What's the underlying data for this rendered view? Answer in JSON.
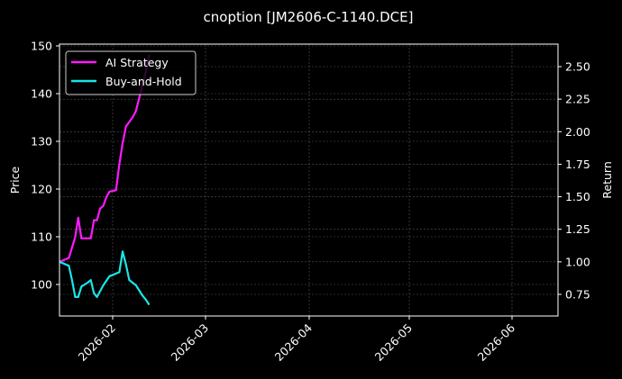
{
  "chart_data": {
    "type": "line",
    "title": "cnoption [JM2606-C-1140.DCE]",
    "xlabel": "",
    "ylabel": "Price",
    "ylabel_right": "Return",
    "ylim": [
      93.5,
      150.2
    ],
    "ylim_right": [
      0.58,
      2.65
    ],
    "x_ticks": [
      "2026-02",
      "2026-03",
      "2026-04",
      "2026-05",
      "2026-06"
    ],
    "y_ticks": [
      100,
      110,
      120,
      130,
      140,
      150
    ],
    "y_ticks_right": [
      "0.75",
      "1.00",
      "1.25",
      "1.50",
      "1.75",
      "2.00",
      "2.25",
      "2.50"
    ],
    "grid": true,
    "legend_position": "upper left",
    "colors": {
      "ai_strategy": "#ff1aff",
      "buy_and_hold": "#19e6e6",
      "background": "#000000",
      "grid": "#555555"
    },
    "series": [
      {
        "name": "AI Strategy",
        "axis": "right",
        "x": [
          "2026-01-15",
          "2026-01-18",
          "2026-01-20",
          "2026-01-21",
          "2026-01-22",
          "2026-01-25",
          "2026-01-26",
          "2026-01-27",
          "2026-01-28",
          "2026-01-29",
          "2026-01-30",
          "2026-01-31",
          "2026-02-02",
          "2026-02-03",
          "2026-02-04",
          "2026-02-05",
          "2026-02-07",
          "2026-02-08",
          "2026-02-10",
          "2026-02-11",
          "2026-02-12"
        ],
        "values": [
          1.0,
          1.03,
          1.19,
          1.34,
          1.18,
          1.18,
          1.32,
          1.32,
          1.41,
          1.43,
          1.5,
          1.54,
          1.55,
          1.75,
          1.91,
          2.04,
          2.11,
          2.16,
          2.36,
          2.46,
          2.59
        ]
      },
      {
        "name": "Buy-and-Hold",
        "axis": "right",
        "x": [
          "2026-01-15",
          "2026-01-18",
          "2026-01-19",
          "2026-01-20",
          "2026-01-21",
          "2026-01-22",
          "2026-01-24",
          "2026-01-25",
          "2026-01-26",
          "2026-01-27",
          "2026-01-29",
          "2026-01-31",
          "2026-02-02",
          "2026-02-03",
          "2026-02-04",
          "2026-02-05",
          "2026-02-06",
          "2026-02-08",
          "2026-02-10",
          "2026-02-11",
          "2026-02-12"
        ],
        "values": [
          1.0,
          0.97,
          0.86,
          0.73,
          0.73,
          0.81,
          0.84,
          0.86,
          0.76,
          0.73,
          0.82,
          0.89,
          0.91,
          0.92,
          1.08,
          0.98,
          0.86,
          0.82,
          0.74,
          0.71,
          0.67
        ]
      }
    ]
  },
  "legend": {
    "items": [
      {
        "label": "AI Strategy"
      },
      {
        "label": "Buy-and-Hold"
      }
    ]
  }
}
